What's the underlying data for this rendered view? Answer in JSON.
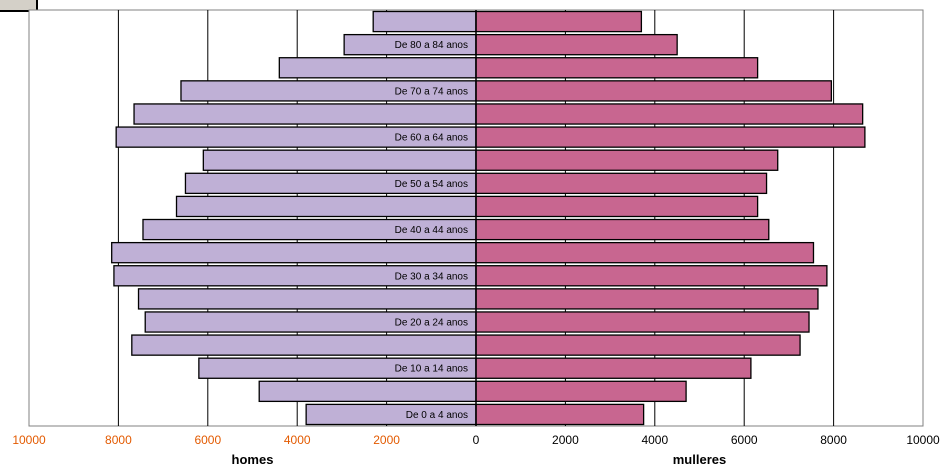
{
  "chart_data": {
    "type": "bar",
    "orientation": "horizontal",
    "categories": [
      "De 0 a 4 anos",
      "",
      "De 10 a 14 anos",
      "",
      "De 20 a 24 anos",
      "",
      "De 30 a 34 anos",
      "",
      "De 40 a 44 anos",
      "",
      "De 50 a 54 anos",
      "",
      "De 60 a 64 anos",
      "",
      "De 70 a 74 anos",
      "",
      "De 80 a 84 anos",
      ""
    ],
    "series": [
      {
        "name": "homes",
        "color": "#bfb0d6",
        "values": [
          3800,
          4850,
          6200,
          7700,
          7400,
          7550,
          8100,
          8150,
          7450,
          6700,
          6500,
          6100,
          8050,
          7650,
          6600,
          4400,
          2950,
          2300
        ]
      },
      {
        "name": "mulleres",
        "color": "#c86690",
        "values": [
          3750,
          4700,
          6150,
          7250,
          7450,
          7650,
          7850,
          7550,
          6550,
          6300,
          6500,
          6750,
          8700,
          8650,
          7950,
          6300,
          4500,
          3700
        ]
      }
    ],
    "xlim": [
      -10000,
      10000
    ],
    "x_ticks": [
      "10000",
      "8000",
      "6000",
      "4000",
      "2000",
      "0",
      "2000",
      "4000",
      "6000",
      "8000",
      "10000"
    ],
    "x_ticks_left_color": "#e35a00",
    "x_ticks_right_color": "#000000",
    "xlabel_left": "homes",
    "xlabel_right": "mulleres",
    "grid": true,
    "legend": "none"
  }
}
